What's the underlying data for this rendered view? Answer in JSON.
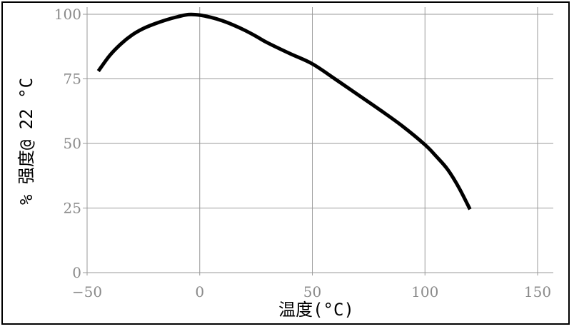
{
  "chart_data": {
    "type": "line",
    "xlabel": "温度(°C)",
    "ylabel": "% 强度@ 22 °C",
    "xlim": [
      -50,
      150
    ],
    "ylim": [
      0,
      100
    ],
    "x_ticks": [
      "−50",
      "0",
      "50",
      "100",
      "150"
    ],
    "y_ticks": [
      "0",
      "25",
      "50",
      "75",
      "100"
    ],
    "grid": true,
    "series": [
      {
        "x": [
          -45,
          -40,
          -35,
          -30,
          -25,
          -20,
          -15,
          -10,
          -5,
          0,
          5,
          10,
          15,
          20,
          25,
          30,
          40,
          50,
          60,
          70,
          80,
          90,
          100,
          105,
          110,
          115,
          120
        ],
        "y": [
          78,
          84,
          88.5,
          92,
          94.5,
          96.3,
          97.8,
          99,
          99.9,
          99.7,
          98.8,
          97.5,
          95.8,
          93.8,
          91.5,
          89,
          84.8,
          80.8,
          75,
          69,
          63,
          56.7,
          49.5,
          45,
          40,
          33,
          24.5
        ],
        "color": "#000000"
      }
    ]
  }
}
